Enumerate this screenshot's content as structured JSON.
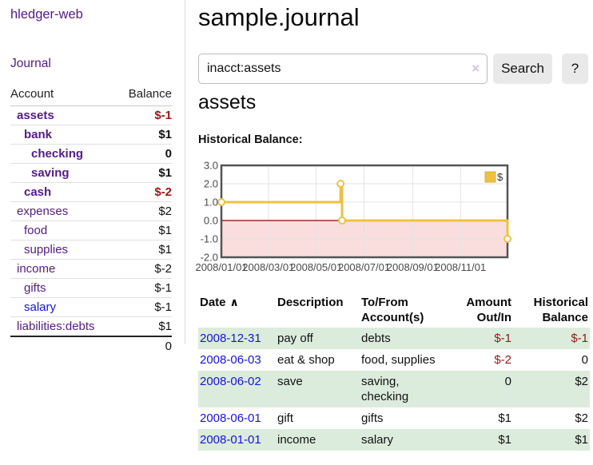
{
  "colors": {
    "link_purple": "#551a8b",
    "link_blue": "#1414dd",
    "neg_strong": "#9d1515",
    "neg_soft": "#bb6677",
    "row_green": "#dcecdc",
    "chart_line": "#edc240",
    "chart_line_border": "#d8b43c",
    "chart_border": "#545454",
    "chart_grid": "#e3e3e3",
    "chart_zero_line": "#8b0000",
    "chart_negative_fill": "#fadede"
  },
  "sidebar": {
    "brand": "hledger-web",
    "journal_link": "Journal",
    "accounts_table": {
      "headers": {
        "account": "Account",
        "balance": "Balance"
      },
      "rows": [
        {
          "name": "assets",
          "balance": "$-1",
          "depth": 0,
          "matched": true
        },
        {
          "name": "bank",
          "balance": "$1",
          "depth": 1,
          "matched": true
        },
        {
          "name": "checking",
          "balance": "0",
          "depth": 2,
          "matched": true
        },
        {
          "name": "saving",
          "balance": "$1",
          "depth": 2,
          "matched": true
        },
        {
          "name": "cash",
          "balance": "$-2",
          "depth": 1,
          "matched": true
        },
        {
          "name": "expenses",
          "balance": "$2",
          "depth": 0,
          "matched": false
        },
        {
          "name": "food",
          "balance": "$1",
          "depth": 1,
          "matched": false
        },
        {
          "name": "supplies",
          "balance": "$1",
          "depth": 1,
          "matched": false
        },
        {
          "name": "income",
          "balance": "$-2",
          "depth": 0,
          "matched": false
        },
        {
          "name": "gifts",
          "balance": "$-1",
          "depth": 1,
          "matched": false
        },
        {
          "name": "salary",
          "balance": "$-1",
          "depth": 1,
          "matched": false,
          "unvisited": true
        },
        {
          "name": "liabilities:debts",
          "balance": "$1",
          "depth": 0,
          "matched": false
        }
      ],
      "total": "0"
    }
  },
  "header": {
    "title": "sample.journal"
  },
  "search": {
    "value": "inacct:assets",
    "clear_icon": "×",
    "button_label": "Search",
    "help_label": "?"
  },
  "account_page": {
    "heading": "assets",
    "chart_label": "Historical Balance:"
  },
  "chart_data": {
    "type": "line",
    "title": "Historical Balance",
    "step": true,
    "legend_position": "top-right",
    "grid": true,
    "negative_region_shaded": true,
    "ylim": [
      -2,
      3
    ],
    "y_ticks": [
      3,
      2,
      1,
      0,
      -1,
      -2
    ],
    "x_range_days": 365,
    "x_ticks": [
      {
        "label": "2008/01/01",
        "day": 0
      },
      {
        "label": "2008/03/01",
        "day": 60
      },
      {
        "label": "2008/05/01",
        "day": 121
      },
      {
        "label": "2008/07/01",
        "day": 182
      },
      {
        "label": "2008/09/01",
        "day": 244
      },
      {
        "label": "2008/11/01",
        "day": 305
      }
    ],
    "series": [
      {
        "name": "$",
        "points": [
          {
            "x": "2008-01-01",
            "y": 1
          },
          {
            "x": "2008-06-01",
            "y": 2
          },
          {
            "x": "2008-06-03",
            "y": 0
          },
          {
            "x": "2008-12-31",
            "y": -1
          }
        ]
      }
    ]
  },
  "register_table": {
    "headers": {
      "date": "Date",
      "sort_icon": "∧",
      "description": "Description",
      "accounts": "To/From Account(s)",
      "amount": "Amount Out/In",
      "balance": "Historical Balance"
    },
    "rows": [
      {
        "date": "2008-12-31",
        "description": "pay off",
        "accounts": "debts",
        "amount": "$-1",
        "balance": "$-1"
      },
      {
        "date": "2008-06-03",
        "description": "eat & shop",
        "accounts": "food, supplies",
        "amount": "$-2",
        "balance": "0"
      },
      {
        "date": "2008-06-02",
        "description": "save",
        "accounts": "saving, checking",
        "amount": "0",
        "balance": "$2"
      },
      {
        "date": "2008-06-01",
        "description": "gift",
        "accounts": "gifts",
        "amount": "$1",
        "balance": "$2"
      },
      {
        "date": "2008-01-01",
        "description": "income",
        "accounts": "salary",
        "amount": "$1",
        "balance": "$1"
      }
    ]
  }
}
